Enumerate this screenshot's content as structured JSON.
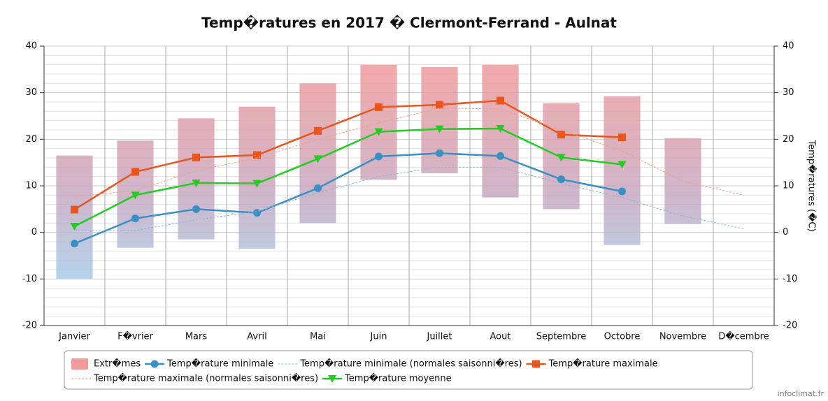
{
  "chart_data": {
    "type": "line",
    "title": "Temp�ratures en 2017 � Clermont-Ferrand - Aulnat",
    "y2_label": "Temp�ratures (�C)",
    "credit": "infoclimat.fr",
    "categories": [
      "Janvier",
      "F�vrier",
      "Mars",
      "Avril",
      "Mai",
      "Juin",
      "Juillet",
      "Aout",
      "Septembre",
      "Octobre",
      "Novembre",
      "D�cembre"
    ],
    "ylim": [
      -20,
      40
    ],
    "yticks": [
      -20,
      -10,
      0,
      10,
      20,
      30,
      40
    ],
    "y2lim": [
      -20,
      40
    ],
    "y2ticks": [
      -20,
      -10,
      0,
      10,
      20,
      30,
      40
    ],
    "grid": true,
    "legend": "bottom",
    "series": [
      {
        "name": "Extr�mes",
        "kind": "range",
        "color": "#f09a9a",
        "values": [
          [
            -10,
            16.5
          ],
          [
            -3.3,
            19.7
          ],
          [
            -1.5,
            24.5
          ],
          [
            -3.5,
            27
          ],
          [
            2,
            32
          ],
          [
            11.3,
            36
          ],
          [
            12.7,
            35.5
          ],
          [
            7.5,
            36
          ],
          [
            5,
            27.7
          ],
          [
            -2.7,
            29.2
          ],
          [
            1.8,
            20.2
          ],
          null
        ]
      },
      {
        "name": "Temp�rature minimale",
        "color": "#3a8fc4",
        "marker": "circle",
        "values": [
          -2.4,
          3,
          5,
          4.2,
          9.5,
          16.3,
          17,
          16.4,
          11.4,
          8.8,
          null,
          null
        ]
      },
      {
        "name": "Temp�rature minimale (normales saisonni�res)",
        "color": "#8bb8d8",
        "dashed": true,
        "values": [
          0.3,
          0.4,
          2.7,
          4.5,
          8.5,
          12,
          14,
          14,
          10.5,
          7.5,
          3.5,
          0.8
        ]
      },
      {
        "name": "Temp�rature maximale",
        "color": "#e8561e",
        "marker": "square",
        "values": [
          4.9,
          13,
          16.1,
          16.6,
          21.8,
          26.9,
          27.4,
          28.3,
          21,
          20.4,
          null,
          null
        ]
      },
      {
        "name": "Temp�rature maximale (normales saisonni�res)",
        "color": "#f0a080",
        "dashed": true,
        "values": [
          7.7,
          9,
          13.2,
          16,
          20,
          23.5,
          26.7,
          26.5,
          22,
          17.5,
          11,
          8
        ]
      },
      {
        "name": "Temp�rature moyenne",
        "color": "#22cc22",
        "marker": "triangle-down",
        "values": [
          1.3,
          8,
          10.6,
          10.5,
          15.8,
          21.6,
          22.2,
          22.3,
          16.1,
          14.6,
          null,
          null
        ]
      }
    ]
  }
}
